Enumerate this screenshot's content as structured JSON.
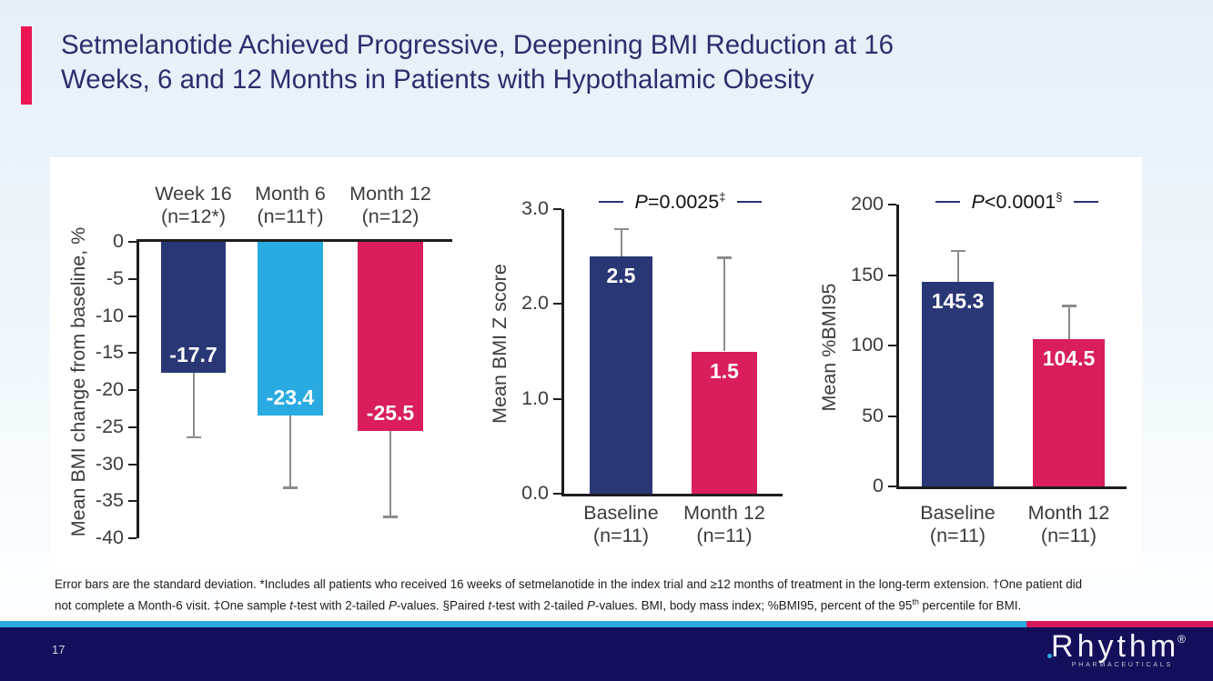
{
  "slide": {
    "title_lines": [
      "Setmelanotide Achieved Progressive, Deepening BMI Reduction at 16",
      "Weeks, 6 and 12 Months in Patients with Hypothalamic Obesity"
    ],
    "page_number": "17",
    "logo": {
      "brand": "Rhythm",
      "registered": "®",
      "subtext": "PHARMACEUTICALS"
    },
    "footnote_segments": [
      {
        "t": "Error bars are the standard deviation. *Includes all patients who received 16 weeks of setmelanotide in the index trial and ≥12 months of treatment in the long-term extension. †One patient did not complete a Month-6 visit. ‡One sample "
      },
      {
        "t": "t",
        "i": true
      },
      {
        "t": "-test with 2-tailed "
      },
      {
        "t": "P",
        "i": true
      },
      {
        "t": "-values. §Paired "
      },
      {
        "t": "t",
        "i": true
      },
      {
        "t": "-test with 2-tailed "
      },
      {
        "t": "P",
        "i": true
      },
      {
        "t": "-values. BMI, body mass index; %BMI95, percent of the 95"
      },
      {
        "t": "th",
        "sup": true
      },
      {
        "t": " percentile for BMI."
      }
    ]
  },
  "colors": {
    "navy_bar": "#2a3775",
    "cyan_bar": "#29abe2",
    "pink_bar": "#d91e5b",
    "axis": "#1d1d1f",
    "error_gray": "#8c8c8c",
    "tick_text": "#3c3c3e",
    "p_dash_navy": "#2b3170"
  },
  "chart_data": [
    {
      "type": "bar",
      "ylabel": "Mean BMI change from baseline, %",
      "ylim": [
        -40,
        0
      ],
      "yticks": [
        "0",
        "-5",
        "-10",
        "-15",
        "-20",
        "-25",
        "-30",
        "-35",
        "-40"
      ],
      "direction": "down",
      "error_bars": "standard deviation",
      "bars": [
        {
          "group": "Week 16",
          "n": "(n=12*)",
          "value": -17.7,
          "label": "-17.7",
          "error_end": -26.5,
          "color_key": "navy_bar"
        },
        {
          "group": "Month 6",
          "n": "(n=11†)",
          "value": -23.4,
          "label": "-23.4",
          "error_end": -33.3,
          "color_key": "cyan_bar"
        },
        {
          "group": "Month 12",
          "n": "(n=12)",
          "value": -25.5,
          "label": "-25.5",
          "error_end": -37.2,
          "color_key": "pink_bar"
        }
      ]
    },
    {
      "type": "bar",
      "ylabel": "Mean BMI Z score",
      "ylim": [
        0,
        3
      ],
      "yticks": [
        "3.0",
        "2.0",
        "1.0",
        "0.0"
      ],
      "direction": "up",
      "p_value": {
        "p": "P",
        "rest": "=0.0025",
        "sup": "‡"
      },
      "bars": [
        {
          "group": "Baseline",
          "n": "(n=11)",
          "value": 2.5,
          "label": "2.5",
          "error_end": 2.8,
          "color_key": "navy_bar"
        },
        {
          "group": "Month 12",
          "n": "(n=11)",
          "value": 1.5,
          "label": "1.5",
          "error_end": 2.5,
          "color_key": "pink_bar"
        }
      ]
    },
    {
      "type": "bar",
      "ylabel": "Mean %BMI95",
      "ylim": [
        0,
        200
      ],
      "yticks": [
        "200",
        "150",
        "100",
        "50",
        "0"
      ],
      "direction": "up",
      "p_value": {
        "p": "P",
        "rest": "<0.0001",
        "sup": "§"
      },
      "bars": [
        {
          "group": "Baseline",
          "n": "(n=11)",
          "value": 145.3,
          "label": "145.3",
          "error_end": 168,
          "color_key": "navy_bar"
        },
        {
          "group": "Month 12",
          "n": "(n=11)",
          "value": 104.5,
          "label": "104.5",
          "error_end": 129,
          "color_key": "pink_bar"
        }
      ]
    }
  ]
}
